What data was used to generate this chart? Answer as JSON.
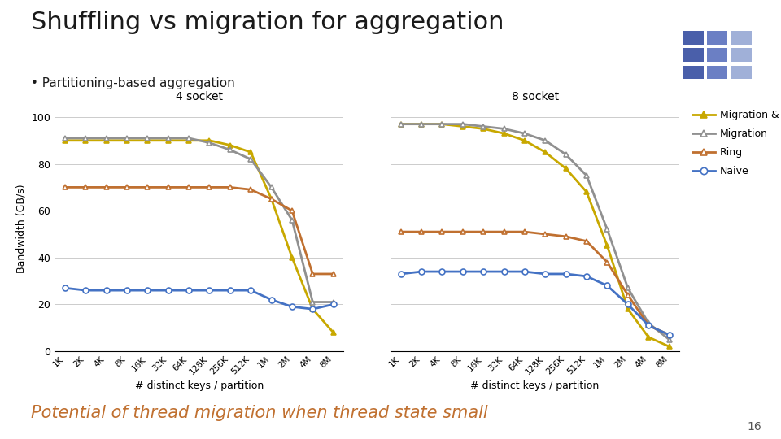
{
  "title": "Shuffling vs migration for aggregation",
  "subtitle": "• Partitioning-based aggregation",
  "bottom_text": "Potential of thread migration when thread state small",
  "ylabel": "Bandwidth (GB/s)",
  "xlabel": "# distinct keys / partition",
  "x_labels": [
    "1K",
    "2K",
    "4K",
    "8K",
    "16K",
    "32K",
    "64K",
    "128K",
    "256K",
    "512K",
    "1M",
    "2M",
    "4M",
    "8M"
  ],
  "ylim": [
    0,
    105
  ],
  "yticks": [
    0,
    20,
    40,
    60,
    80,
    100
  ],
  "chart1_title": "4 socket",
  "chart2_title": "8 socket",
  "legend_labels": [
    "Migration & copy",
    "Migration",
    "Ring",
    "Naive"
  ],
  "colors": {
    "migration_copy": "#c8a800",
    "migration": "#909090",
    "ring": "#c07030",
    "naive": "#4472c4"
  },
  "chart1": {
    "migration_copy": [
      90,
      90,
      90,
      90,
      90,
      90,
      90,
      90,
      88,
      85,
      65,
      40,
      18,
      8
    ],
    "migration": [
      91,
      91,
      91,
      91,
      91,
      91,
      91,
      89,
      86,
      82,
      70,
      56,
      21,
      21
    ],
    "ring": [
      70,
      70,
      70,
      70,
      70,
      70,
      70,
      70,
      70,
      69,
      65,
      60,
      33,
      33
    ],
    "naive": [
      27,
      26,
      26,
      26,
      26,
      26,
      26,
      26,
      26,
      26,
      22,
      19,
      18,
      20
    ]
  },
  "chart2": {
    "migration_copy": [
      97,
      97,
      97,
      96,
      95,
      93,
      90,
      85,
      78,
      68,
      45,
      18,
      6,
      2
    ],
    "migration": [
      97,
      97,
      97,
      97,
      96,
      95,
      93,
      90,
      84,
      75,
      52,
      27,
      12,
      5
    ],
    "ring": [
      51,
      51,
      51,
      51,
      51,
      51,
      51,
      50,
      49,
      47,
      38,
      24,
      11,
      7
    ],
    "naive": [
      33,
      34,
      34,
      34,
      34,
      34,
      34,
      33,
      33,
      32,
      28,
      20,
      11,
      7
    ]
  },
  "page_number": "16",
  "background_color": "#ffffff"
}
